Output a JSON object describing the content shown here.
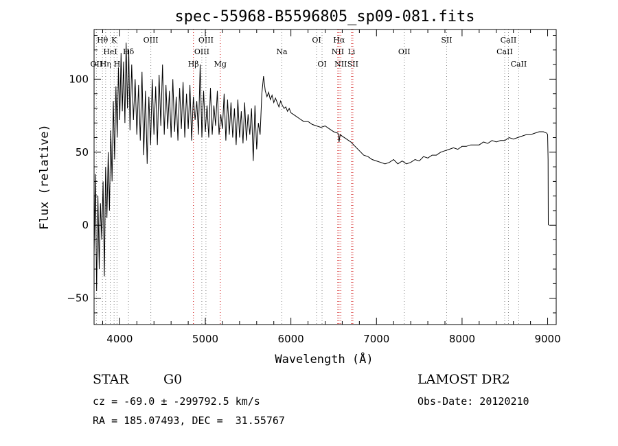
{
  "chart_data": {
    "type": "line",
    "title": "spec-55968-B5596805_sp09-081.fits",
    "xlabel": "Wavelength (Å)",
    "ylabel": "Flux (relative)",
    "xlim": [
      3700,
      9100
    ],
    "ylim": [
      -68,
      134
    ],
    "xticks": [
      4000,
      5000,
      6000,
      7000,
      8000,
      9000
    ],
    "yticks": [
      -50,
      0,
      50,
      100
    ],
    "grid": false,
    "series": [
      {
        "color": "#000000",
        "points": [
          [
            3700,
            -20
          ],
          [
            3715,
            35
          ],
          [
            3730,
            -45
          ],
          [
            3745,
            20
          ],
          [
            3760,
            -30
          ],
          [
            3775,
            15
          ],
          [
            3790,
            -10
          ],
          [
            3805,
            30
          ],
          [
            3820,
            -35
          ],
          [
            3835,
            40
          ],
          [
            3850,
            5
          ],
          [
            3865,
            50
          ],
          [
            3880,
            10
          ],
          [
            3895,
            65
          ],
          [
            3910,
            30
          ],
          [
            3925,
            85
          ],
          [
            3940,
            45
          ],
          [
            3955,
            95
          ],
          [
            3970,
            60
          ],
          [
            3985,
            108
          ],
          [
            4000,
            72
          ],
          [
            4015,
            118
          ],
          [
            4030,
            78
          ],
          [
            4045,
            112
          ],
          [
            4060,
            70
          ],
          [
            4075,
            125
          ],
          [
            4090,
            80
          ],
          [
            4105,
            120
          ],
          [
            4120,
            65
          ],
          [
            4140,
            110
          ],
          [
            4160,
            72
          ],
          [
            4180,
            100
          ],
          [
            4200,
            62
          ],
          [
            4220,
            96
          ],
          [
            4240,
            58
          ],
          [
            4260,
            105
          ],
          [
            4280,
            48
          ],
          [
            4300,
            92
          ],
          [
            4320,
            42
          ],
          [
            4340,
            88
          ],
          [
            4360,
            55
          ],
          [
            4380,
            100
          ],
          [
            4400,
            62
          ],
          [
            4420,
            95
          ],
          [
            4440,
            55
          ],
          [
            4460,
            103
          ],
          [
            4480,
            68
          ],
          [
            4500,
            110
          ],
          [
            4520,
            62
          ],
          [
            4540,
            96
          ],
          [
            4560,
            66
          ],
          [
            4580,
            92
          ],
          [
            4600,
            60
          ],
          [
            4620,
            100
          ],
          [
            4640,
            64
          ],
          [
            4660,
            88
          ],
          [
            4680,
            58
          ],
          [
            4700,
            94
          ],
          [
            4720,
            66
          ],
          [
            4740,
            98
          ],
          [
            4760,
            60
          ],
          [
            4780,
            90
          ],
          [
            4800,
            66
          ],
          [
            4820,
            96
          ],
          [
            4840,
            58
          ],
          [
            4860,
            88
          ],
          [
            4880,
            72
          ],
          [
            4900,
            85
          ],
          [
            4920,
            62
          ],
          [
            4940,
            110
          ],
          [
            4960,
            60
          ],
          [
            4980,
            92
          ],
          [
            5000,
            64
          ],
          [
            5020,
            82
          ],
          [
            5040,
            60
          ],
          [
            5060,
            94
          ],
          [
            5080,
            62
          ],
          [
            5100,
            82
          ],
          [
            5120,
            68
          ],
          [
            5140,
            92
          ],
          [
            5160,
            62
          ],
          [
            5180,
            76
          ],
          [
            5200,
            66
          ],
          [
            5220,
            90
          ],
          [
            5240,
            58
          ],
          [
            5260,
            86
          ],
          [
            5280,
            62
          ],
          [
            5300,
            84
          ],
          [
            5320,
            60
          ],
          [
            5340,
            80
          ],
          [
            5360,
            55
          ],
          [
            5380,
            86
          ],
          [
            5400,
            60
          ],
          [
            5420,
            78
          ],
          [
            5440,
            56
          ],
          [
            5460,
            84
          ],
          [
            5480,
            58
          ],
          [
            5500,
            76
          ],
          [
            5520,
            62
          ],
          [
            5540,
            80
          ],
          [
            5560,
            44
          ],
          [
            5580,
            82
          ],
          [
            5600,
            52
          ],
          [
            5620,
            70
          ],
          [
            5640,
            62
          ],
          [
            5660,
            90
          ],
          [
            5680,
            102
          ],
          [
            5700,
            92
          ],
          [
            5720,
            88
          ],
          [
            5740,
            91
          ],
          [
            5760,
            86
          ],
          [
            5780,
            89
          ],
          [
            5800,
            84
          ],
          [
            5820,
            87
          ],
          [
            5840,
            84
          ],
          [
            5860,
            81
          ],
          [
            5880,
            85
          ],
          [
            5900,
            82
          ],
          [
            5920,
            80
          ],
          [
            5940,
            81
          ],
          [
            5960,
            78
          ],
          [
            5980,
            80
          ],
          [
            6000,
            77
          ],
          [
            6050,
            75
          ],
          [
            6100,
            73
          ],
          [
            6150,
            71
          ],
          [
            6200,
            71
          ],
          [
            6250,
            69
          ],
          [
            6300,
            68
          ],
          [
            6350,
            67
          ],
          [
            6400,
            68
          ],
          [
            6450,
            66
          ],
          [
            6500,
            64
          ],
          [
            6550,
            63
          ],
          [
            6563,
            57
          ],
          [
            6575,
            62
          ],
          [
            6600,
            61
          ],
          [
            6650,
            59
          ],
          [
            6700,
            57
          ],
          [
            6750,
            54
          ],
          [
            6800,
            51
          ],
          [
            6850,
            48
          ],
          [
            6900,
            47
          ],
          [
            6950,
            45
          ],
          [
            7000,
            44
          ],
          [
            7050,
            43
          ],
          [
            7100,
            42
          ],
          [
            7150,
            43
          ],
          [
            7200,
            45
          ],
          [
            7250,
            42
          ],
          [
            7300,
            44
          ],
          [
            7350,
            42
          ],
          [
            7400,
            43
          ],
          [
            7450,
            45
          ],
          [
            7500,
            44
          ],
          [
            7550,
            47
          ],
          [
            7600,
            46
          ],
          [
            7650,
            48
          ],
          [
            7700,
            48
          ],
          [
            7750,
            50
          ],
          [
            7800,
            51
          ],
          [
            7850,
            52
          ],
          [
            7900,
            53
          ],
          [
            7950,
            52
          ],
          [
            8000,
            54
          ],
          [
            8050,
            54
          ],
          [
            8100,
            55
          ],
          [
            8150,
            55
          ],
          [
            8200,
            55
          ],
          [
            8250,
            57
          ],
          [
            8300,
            56
          ],
          [
            8350,
            58
          ],
          [
            8400,
            57
          ],
          [
            8450,
            58
          ],
          [
            8500,
            58
          ],
          [
            8550,
            60
          ],
          [
            8600,
            59
          ],
          [
            8650,
            60
          ],
          [
            8700,
            61
          ],
          [
            8750,
            62
          ],
          [
            8800,
            62
          ],
          [
            8850,
            63
          ],
          [
            8900,
            64
          ],
          [
            8950,
            64
          ],
          [
            8990,
            63
          ],
          [
            9000,
            62
          ],
          [
            9005,
            45
          ],
          [
            9008,
            0
          ]
        ]
      }
    ],
    "lines": [
      {
        "label": "OII",
        "wl": 3727,
        "color": "#808080",
        "row": 3
      },
      {
        "label": "Hθ",
        "wl": 3798,
        "color": "#808080",
        "row": 1
      },
      {
        "label": "Hη",
        "wl": 3835,
        "color": "#808080",
        "row": 3
      },
      {
        "label": "HeI",
        "wl": 3889,
        "color": "#808080",
        "row": 2
      },
      {
        "label": "K",
        "wl": 3934,
        "color": "#808080",
        "row": 1
      },
      {
        "label": "H",
        "wl": 3968,
        "color": "#808080",
        "row": 3
      },
      {
        "label": "Hδ",
        "wl": 4102,
        "color": "#808080",
        "row": 2
      },
      {
        "label": "OIII",
        "wl": 4363,
        "color": "#808080",
        "row": 1
      },
      {
        "label": "Hβ",
        "wl": 4861,
        "color": "#cc0000",
        "row": 3
      },
      {
        "label": "OIII",
        "wl": 4959,
        "color": "#808080",
        "row": 2
      },
      {
        "label": "OIII",
        "wl": 5007,
        "color": "#808080",
        "row": 1
      },
      {
        "label": "Mg",
        "wl": 5175,
        "color": "#cc0000",
        "row": 3
      },
      {
        "label": "Na",
        "wl": 5894,
        "color": "#808080",
        "row": 2
      },
      {
        "label": "OI",
        "wl": 6300,
        "color": "#808080",
        "row": 1
      },
      {
        "label": "OI",
        "wl": 6364,
        "color": "#808080",
        "row": 3
      },
      {
        "label": "NII",
        "wl": 6548,
        "color": "#cc0000",
        "row": 2
      },
      {
        "label": "Hα",
        "wl": 6563,
        "color": "#cc0000",
        "row": 1
      },
      {
        "label": "NII",
        "wl": 6583,
        "color": "#cc0000",
        "row": 3
      },
      {
        "label": "Li",
        "wl": 6708,
        "color": "#cc0000",
        "row": 2
      },
      {
        "label": "SII",
        "wl": 6724,
        "color": "#cc0000",
        "row": 3
      },
      {
        "label": "OII",
        "wl": 7325,
        "color": "#808080",
        "row": 2
      },
      {
        "label": "SII",
        "wl": 7820,
        "color": "#808080",
        "row": 1
      },
      {
        "label": "CaII",
        "wl": 8498,
        "color": "#808080",
        "row": 2
      },
      {
        "label": "CaII",
        "wl": 8542,
        "color": "#808080",
        "row": 1
      },
      {
        "label": "CaII",
        "wl": 8662,
        "color": "#808080",
        "row": 3
      }
    ]
  },
  "info": {
    "class": "STAR",
    "subclass": "G0",
    "survey": "LAMOST DR2",
    "cz": "cz = -69.0 ± -299792.5 km/s",
    "obs_date": "Obs-Date: 20120210",
    "radec": "RA = 185.07493, DEC =  31.55767"
  }
}
